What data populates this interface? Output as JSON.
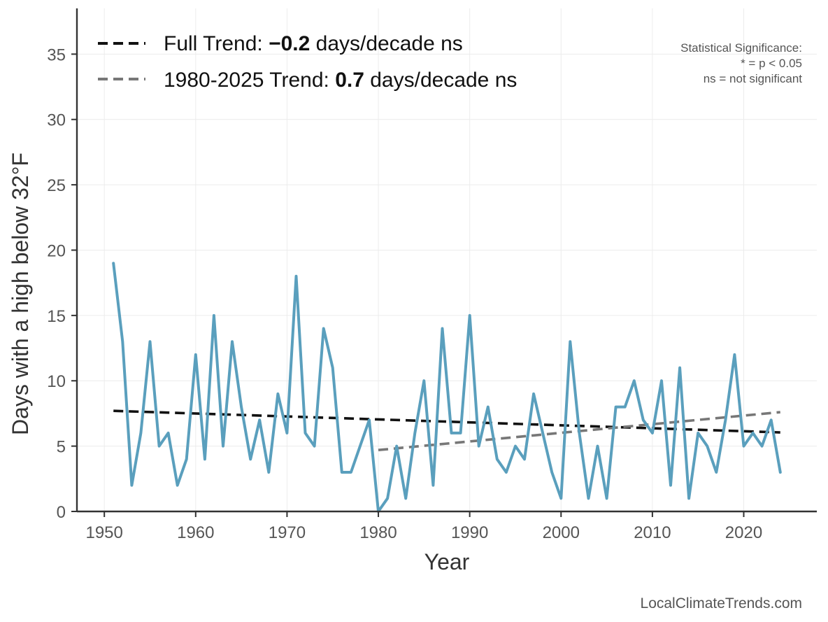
{
  "chart_data": {
    "type": "line",
    "xlabel": "Year",
    "ylabel": "Days with a high below 32°F",
    "xlim": [
      1947,
      2028
    ],
    "ylim": [
      0,
      38.5
    ],
    "x_ticks": [
      1950,
      1960,
      1970,
      1980,
      1990,
      2000,
      2010,
      2020
    ],
    "y_ticks": [
      0,
      5,
      10,
      15,
      20,
      25,
      30,
      35
    ],
    "grid": true,
    "legend_position": "top-left",
    "series": [
      {
        "color": "#5a9fbd",
        "x": [
          1951,
          1952,
          1953,
          1954,
          1955,
          1956,
          1957,
          1958,
          1959,
          1960,
          1961,
          1962,
          1963,
          1964,
          1965,
          1966,
          1967,
          1968,
          1969,
          1970,
          1971,
          1972,
          1973,
          1974,
          1975,
          1976,
          1977,
          1978,
          1979,
          1980,
          1981,
          1982,
          1983,
          1984,
          1985,
          1986,
          1987,
          1988,
          1989,
          1990,
          1991,
          1992,
          1993,
          1994,
          1995,
          1996,
          1997,
          1998,
          1999,
          2000,
          2001,
          2002,
          2003,
          2004,
          2005,
          2006,
          2007,
          2008,
          2009,
          2010,
          2011,
          2012,
          2013,
          2014,
          2015,
          2016,
          2017,
          2018,
          2019,
          2020,
          2021,
          2022,
          2023,
          2024
        ],
        "values": [
          19,
          13,
          2,
          6,
          13,
          5,
          6,
          2,
          4,
          12,
          4,
          15,
          5,
          13,
          8,
          4,
          7,
          3,
          9,
          6,
          18,
          6,
          5,
          14,
          11,
          3,
          3,
          5,
          7,
          0,
          1,
          5,
          1,
          6,
          10,
          2,
          14,
          6,
          6,
          15,
          5,
          8,
          4,
          3,
          5,
          4,
          9,
          6,
          3,
          1,
          13,
          6,
          1,
          5,
          1,
          8,
          8,
          10,
          7,
          6,
          10,
          2,
          11,
          1,
          6,
          5,
          3,
          7,
          12,
          5,
          6,
          5,
          7,
          3
        ]
      }
    ],
    "trends": [
      {
        "label_prefix": "Full Trend: ",
        "label_value": "−0.2",
        "label_suffix": " days/decade ns",
        "color": "#111111",
        "x": [
          1951,
          2024
        ],
        "values": [
          7.7,
          6.05
        ]
      },
      {
        "label_prefix": "1980-2025 Trend: ",
        "label_value": "0.7",
        "label_suffix": " days/decade ns",
        "color": "#777777",
        "x": [
          1980,
          2024
        ],
        "values": [
          4.7,
          7.6
        ]
      }
    ],
    "annotation": [
      "Statistical Significance:",
      "* = p < 0.05",
      "ns = not significant"
    ],
    "credit": "LocalClimateTrends.com"
  }
}
